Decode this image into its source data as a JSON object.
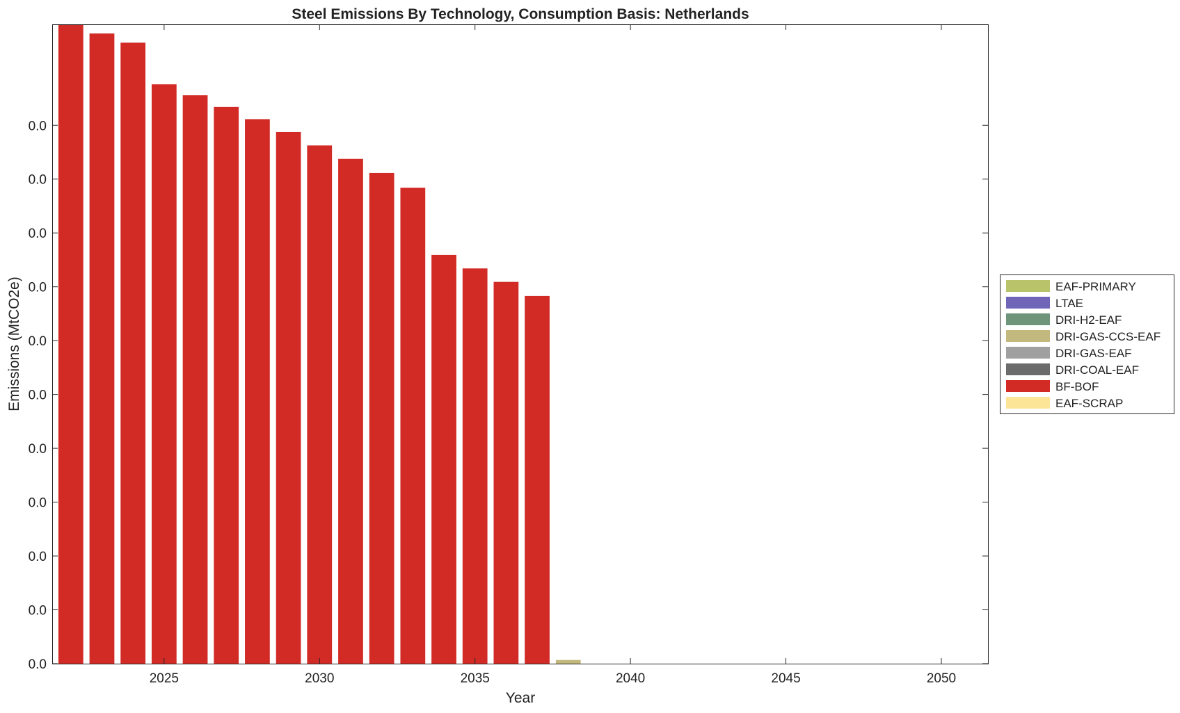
{
  "chart_data": {
    "type": "bar",
    "stacked": true,
    "title": "Steel Emissions By Technology, Consumption Basis: Netherlands",
    "xlabel": "Year",
    "ylabel": "Emissions (MtCO2e)",
    "x_ticks": [
      2025,
      2030,
      2035,
      2040,
      2045,
      2050
    ],
    "y_tick_labels": [
      "0.0",
      "0.0",
      "0.0",
      "0.0",
      "0.0",
      "0.0",
      "0.0",
      "0.0",
      "0.0",
      "0.0",
      "0.0"
    ],
    "xlim": [
      2021.4,
      2051.5
    ],
    "ylim": [
      0,
      10.45
    ],
    "grid": false,
    "legend_position": "right",
    "categories": [
      2022,
      2023,
      2024,
      2025,
      2026,
      2027,
      2028,
      2029,
      2030,
      2031,
      2032,
      2033,
      2034,
      2035,
      2036,
      2037,
      2038,
      2039,
      2040,
      2041,
      2042,
      2043,
      2044,
      2045,
      2046,
      2047,
      2048,
      2049,
      2050
    ],
    "series": [
      {
        "name": "EAF-PRIMARY",
        "color": "#b9c46a",
        "values": [
          0,
          0,
          0,
          0,
          0,
          0,
          0,
          0,
          0,
          0,
          0,
          0,
          0,
          0,
          0,
          0,
          0,
          0,
          0,
          0,
          0,
          0,
          0,
          0,
          0,
          0,
          0,
          0,
          0
        ]
      },
      {
        "name": "LTAE",
        "color": "#6f66b8",
        "values": [
          0,
          0,
          0,
          0,
          0,
          0,
          0,
          0,
          0,
          0,
          0,
          0,
          0,
          0,
          0,
          0,
          0,
          0,
          0,
          0,
          0,
          0,
          0,
          0,
          0,
          0,
          0,
          0,
          0
        ]
      },
      {
        "name": "DRI-H2-EAF",
        "color": "#6e957a",
        "values": [
          0,
          0,
          0,
          0,
          0,
          0,
          0,
          0,
          0,
          0,
          0,
          0,
          0,
          0,
          0,
          0,
          0,
          0,
          0,
          0,
          0,
          0,
          0,
          0,
          0,
          0,
          0,
          0,
          0
        ]
      },
      {
        "name": "DRI-GAS-CCS-EAF",
        "color": "#c3b97e",
        "values": [
          0,
          0,
          0,
          0,
          0,
          0,
          0,
          0,
          0,
          0,
          0,
          0,
          0,
          0,
          0,
          0,
          0.06,
          0,
          0,
          0,
          0,
          0,
          0,
          0,
          0,
          0,
          0,
          0,
          0
        ]
      },
      {
        "name": "DRI-GAS-EAF",
        "color": "#a0a0a0",
        "values": [
          0,
          0,
          0,
          0,
          0,
          0,
          0,
          0,
          0,
          0,
          0,
          0,
          0,
          0,
          0,
          0,
          0,
          0,
          0,
          0,
          0,
          0,
          0,
          0,
          0,
          0,
          0,
          0,
          0
        ]
      },
      {
        "name": "DRI-COAL-EAF",
        "color": "#6b6b6b",
        "values": [
          0,
          0,
          0,
          0,
          0,
          0,
          0,
          0,
          0,
          0,
          0,
          0,
          0,
          0,
          0,
          0,
          0,
          0,
          0,
          0,
          0,
          0,
          0,
          0,
          0,
          0,
          0,
          0,
          0
        ]
      },
      {
        "name": "BF-BOF",
        "color": "#d22b26",
        "values": [
          10.45,
          10.3,
          10.15,
          9.47,
          9.29,
          9.1,
          8.9,
          8.69,
          8.47,
          8.25,
          8.02,
          7.78,
          6.68,
          6.46,
          6.24,
          6.01,
          0,
          0,
          0,
          0,
          0,
          0,
          0,
          0,
          0,
          0,
          0,
          0,
          0
        ]
      },
      {
        "name": "EAF-SCRAP",
        "color": "#fde598",
        "values": [
          0,
          0,
          0,
          0,
          0,
          0,
          0,
          0,
          0,
          0,
          0,
          0,
          0,
          0,
          0,
          0,
          0,
          0,
          0,
          0,
          0,
          0,
          0,
          0,
          0,
          0,
          0,
          0,
          0
        ]
      }
    ]
  }
}
